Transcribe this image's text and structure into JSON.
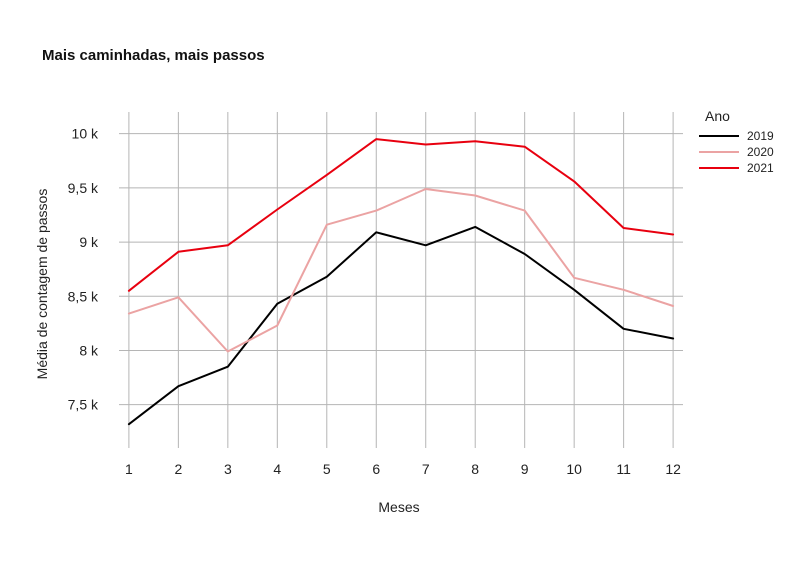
{
  "chart_data": {
    "type": "line",
    "title": "Mais caminhadas, mais passos",
    "xlabel": "Meses",
    "ylabel": "Média de contagem de passos",
    "x": [
      1,
      2,
      3,
      4,
      5,
      6,
      7,
      8,
      9,
      10,
      11,
      12
    ],
    "x_tick_labels": [
      "1",
      "2",
      "3",
      "4",
      "5",
      "6",
      "7",
      "8",
      "9",
      "10",
      "11",
      "12"
    ],
    "xlim": [
      0.8,
      12.2
    ],
    "ylim": [
      7100,
      10200
    ],
    "y_ticks": [
      7500,
      8000,
      8500,
      9000,
      9500,
      10000
    ],
    "y_tick_labels": [
      "7,5 k",
      "8 k",
      "8,5 k",
      "9 k",
      "9,5 k",
      "10 k"
    ],
    "grid": true,
    "legend": {
      "title": "Ano",
      "position": "right"
    },
    "series": [
      {
        "name": "2019",
        "color": "#000000",
        "values": [
          7320,
          7670,
          7850,
          8430,
          8680,
          9090,
          8970,
          9140,
          8890,
          8560,
          8200,
          8110
        ]
      },
      {
        "name": "2020",
        "color": "#eba3a3",
        "values": [
          8340,
          8490,
          7990,
          8230,
          9160,
          9290,
          9490,
          9430,
          9290,
          8670,
          8560,
          8410
        ]
      },
      {
        "name": "2021",
        "color": "#e8000f",
        "values": [
          8550,
          8910,
          8970,
          9300,
          9620,
          9950,
          9900,
          9930,
          9880,
          9560,
          9130,
          9070
        ]
      }
    ]
  }
}
